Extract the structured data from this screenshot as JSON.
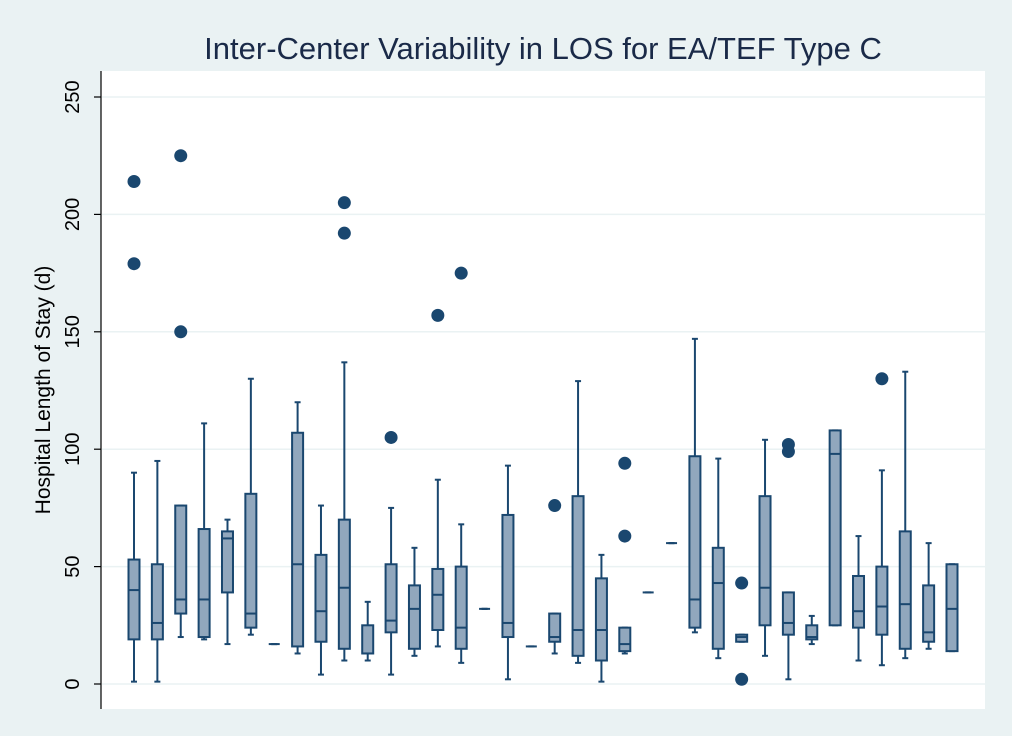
{
  "chart_data": {
    "type": "box",
    "title": "Inter-Center Variability in LOS for EA/TEF Type C",
    "ylabel": "Hospital Length of Stay (d)",
    "ylim": [
      0,
      260
    ],
    "yticks": [
      0,
      50,
      100,
      150,
      200,
      250
    ],
    "grid": true,
    "legend": "none",
    "colors": {
      "box_fill": "#91a7bd",
      "box_line": "#1a476f",
      "outlier": "#1a476f",
      "background": "#eaf2f3",
      "plot_bg": "#ffffff"
    },
    "boxes": [
      {
        "min": 1,
        "q1": 19,
        "median": 40,
        "q3": 53,
        "max": 90,
        "outliers": [
          179,
          214
        ]
      },
      {
        "min": 1,
        "q1": 19,
        "median": 26,
        "q3": 51,
        "max": 95,
        "outliers": []
      },
      {
        "min": 20,
        "q1": 30,
        "median": 36,
        "q3": 76,
        "max": 76,
        "outliers": [
          150,
          225
        ]
      },
      {
        "min": 19,
        "q1": 20,
        "median": 36,
        "q3": 66,
        "max": 111,
        "outliers": []
      },
      {
        "min": 17,
        "q1": 39,
        "median": 62,
        "q3": 65,
        "max": 70,
        "outliers": []
      },
      {
        "min": 21,
        "q1": 24,
        "median": 30,
        "q3": 81,
        "max": 130,
        "outliers": []
      },
      {
        "min": 17,
        "q1": 17,
        "median": 17,
        "q3": 17,
        "max": 17,
        "outliers": []
      },
      {
        "min": 13,
        "q1": 16,
        "median": 51,
        "q3": 107,
        "max": 120,
        "outliers": []
      },
      {
        "min": 4,
        "q1": 18,
        "median": 31,
        "q3": 55,
        "max": 76,
        "outliers": []
      },
      {
        "min": 10,
        "q1": 15,
        "median": 41,
        "q3": 70,
        "max": 137,
        "outliers": [
          192,
          205
        ]
      },
      {
        "min": 10,
        "q1": 13,
        "median": 13,
        "q3": 25,
        "max": 35,
        "outliers": []
      },
      {
        "min": 4,
        "q1": 22,
        "median": 27,
        "q3": 51,
        "max": 75,
        "outliers": [
          105
        ]
      },
      {
        "min": 12,
        "q1": 15,
        "median": 32,
        "q3": 42,
        "max": 58,
        "outliers": []
      },
      {
        "min": 16,
        "q1": 23,
        "median": 38,
        "q3": 49,
        "max": 87,
        "outliers": [
          157
        ]
      },
      {
        "min": 9,
        "q1": 15,
        "median": 24,
        "q3": 50,
        "max": 68,
        "outliers": [
          175
        ]
      },
      {
        "min": 32,
        "q1": 32,
        "median": 32,
        "q3": 32,
        "max": 32,
        "outliers": []
      },
      {
        "min": 2,
        "q1": 20,
        "median": 26,
        "q3": 72,
        "max": 93,
        "outliers": []
      },
      {
        "min": 16,
        "q1": 16,
        "median": 16,
        "q3": 16,
        "max": 16,
        "outliers": []
      },
      {
        "min": 13,
        "q1": 18,
        "median": 20,
        "q3": 30,
        "max": 30,
        "outliers": [
          76
        ]
      },
      {
        "min": 9,
        "q1": 12,
        "median": 23,
        "q3": 80,
        "max": 129,
        "outliers": []
      },
      {
        "min": 1,
        "q1": 10,
        "median": 23,
        "q3": 45,
        "max": 55,
        "outliers": []
      },
      {
        "min": 13,
        "q1": 14,
        "median": 17,
        "q3": 24,
        "max": 24,
        "outliers": [
          63,
          94
        ]
      },
      {
        "min": 39,
        "q1": 39,
        "median": 39,
        "q3": 39,
        "max": 39,
        "outliers": []
      },
      {
        "min": 60,
        "q1": 60,
        "median": 60,
        "q3": 60,
        "max": 60,
        "outliers": []
      },
      {
        "min": 22,
        "q1": 24,
        "median": 36,
        "q3": 97,
        "max": 147,
        "outliers": []
      },
      {
        "min": 11,
        "q1": 15,
        "median": 43,
        "q3": 58,
        "max": 96,
        "outliers": []
      },
      {
        "min": 18,
        "q1": 18,
        "median": 20,
        "q3": 21,
        "max": 21,
        "outliers": [
          2,
          43
        ]
      },
      {
        "min": 12,
        "q1": 25,
        "median": 41,
        "q3": 80,
        "max": 104,
        "outliers": []
      },
      {
        "min": 2,
        "q1": 21,
        "median": 26,
        "q3": 39,
        "max": 39,
        "outliers": [
          99,
          102
        ]
      },
      {
        "min": 17,
        "q1": 19,
        "median": 20,
        "q3": 25,
        "max": 29,
        "outliers": []
      },
      {
        "min": 25,
        "q1": 25,
        "median": 98,
        "q3": 108,
        "max": 108,
        "outliers": []
      },
      {
        "min": 10,
        "q1": 24,
        "median": 31,
        "q3": 46,
        "max": 63,
        "outliers": []
      },
      {
        "min": 8,
        "q1": 21,
        "median": 33,
        "q3": 50,
        "max": 91,
        "outliers": [
          130
        ]
      },
      {
        "min": 11,
        "q1": 15,
        "median": 34,
        "q3": 65,
        "max": 133,
        "outliers": []
      },
      {
        "min": 15,
        "q1": 18,
        "median": 22,
        "q3": 42,
        "max": 60,
        "outliers": []
      },
      {
        "min": 14,
        "q1": 14,
        "median": 32,
        "q3": 51,
        "max": 51,
        "outliers": []
      }
    ]
  }
}
